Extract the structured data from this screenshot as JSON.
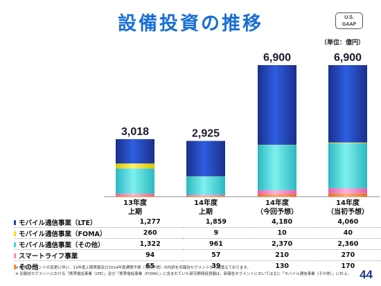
{
  "title": "設備投資の推移",
  "badge": {
    "line1": "U.S.",
    "line2": "GAAP"
  },
  "unit": "（単位：億円）",
  "colors": {
    "lte": "#1f3fb5",
    "foma": "#f5e000",
    "other_mobile": "#3fd6d6",
    "smartlife": "#ff80c8",
    "others": "#ff8a2a"
  },
  "chart_data": {
    "type": "bar",
    "stacked": true,
    "categories": [
      {
        "line1": "13年度",
        "line2": "上期"
      },
      {
        "line1": "14年度",
        "line2": "上期"
      },
      {
        "line1": "14年度",
        "line2": "（今回予想）"
      },
      {
        "line1": "14年度",
        "line2": "（当初予想）"
      }
    ],
    "totals": [
      "3,018",
      "2,925",
      "6,900",
      "6,900"
    ],
    "series": [
      {
        "name": "その他",
        "key": "others",
        "values": [
          65,
          39,
          130,
          170
        ],
        "display": [
          "65",
          "39",
          "130",
          "170"
        ]
      },
      {
        "name": "スマートライフ事業",
        "key": "smartlife",
        "values": [
          94,
          57,
          210,
          270
        ],
        "display": [
          "94",
          "57",
          "210",
          "270"
        ]
      },
      {
        "name": "モバイル通信事業（その他）",
        "key": "other_mobile",
        "values": [
          1322,
          961,
          2370,
          2360
        ],
        "display": [
          "1,322",
          "961",
          "2,370",
          "2,360"
        ]
      },
      {
        "name": "モバイル通信事業（FOMA）",
        "key": "foma",
        "values": [
          260,
          9,
          10,
          40
        ],
        "display": [
          "260",
          "9",
          "10",
          "40"
        ]
      },
      {
        "name": "モバイル通信事業（LTE）",
        "key": "lte",
        "values": [
          1277,
          1859,
          4180,
          4060
        ],
        "display": [
          "1,277",
          "1,859",
          "4,180",
          "4,060"
        ]
      }
    ],
    "table_order": [
      "lte",
      "foma",
      "other_mobile",
      "smartlife",
      "others"
    ]
  },
  "notes": [
    "※ 報告セグメントの変更に伴い、13年度上期実績及び2014年度通期予想（当初予想）の内訳を旧報告セグメントから組替えております。",
    "※ 旧報告セグメントにおける「携帯電話事業（LTE）」及び「携帯電話事業（FOMA）」に含まれていた研究開発投資額は、新報告セグメントにおいては主に「モバイル通信事業（その他）」に計上。"
  ],
  "page_number": "44"
}
